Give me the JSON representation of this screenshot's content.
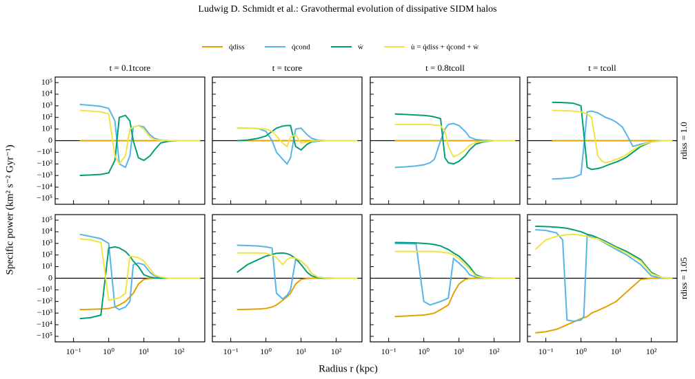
{
  "header": "Ludwig D. Schmidt et al.: Gravothermal evolution of dissipative SIDM halos",
  "legend": [
    {
      "name": "q̇diss",
      "color": "#e69f00"
    },
    {
      "name": "q̇cond",
      "color": "#56b4e9"
    },
    {
      "name": "ẇ",
      "color": "#009e73"
    },
    {
      "name": "u̇ = q̇diss + q̇cond + ẇ",
      "color": "#f0e442"
    }
  ],
  "ylabel": "Specific power (km² s⁻² Gyr⁻¹)",
  "xlabel": "Radius r (kpc)",
  "row_labels": [
    "rdiss = 1.0",
    "rdiss = 1.05"
  ],
  "xscale": "log",
  "yscale": "symlog",
  "linthresh": 10,
  "xlim": [
    0.03,
    540
  ],
  "ylim": [
    -300000,
    300000
  ],
  "xticks": [
    {
      "value": 0.1,
      "label": "10⁻¹"
    },
    {
      "value": 1,
      "label": "10⁰"
    },
    {
      "value": 10,
      "label": "10¹"
    },
    {
      "value": 100,
      "label": "10²"
    }
  ],
  "yticks": [
    {
      "value": 100000,
      "label": "10⁵"
    },
    {
      "value": 10000,
      "label": "10⁴"
    },
    {
      "value": 1000,
      "label": "10³"
    },
    {
      "value": 100,
      "label": "10²"
    },
    {
      "value": 10,
      "label": "10¹"
    },
    0,
    {
      "value": -10,
      "label": "−10¹"
    },
    {
      "value": -100,
      "label": "−10²"
    },
    {
      "value": -1000,
      "label": "−10³"
    },
    {
      "value": -10000,
      "label": "−10⁴"
    },
    {
      "value": -100000,
      "label": "−10⁵"
    }
  ],
  "chart_data": [
    {
      "type": "line",
      "title": "t = 0.1tcore",
      "x": [
        0.15,
        0.3,
        0.6,
        1,
        1.5,
        2,
        3,
        4,
        5,
        7,
        10,
        15,
        20,
        30,
        50,
        100,
        200,
        400
      ],
      "series": [
        {
          "values": [
            0,
            0,
            0,
            0,
            0,
            0,
            0,
            0,
            0,
            0,
            0,
            0,
            0,
            0,
            0,
            0,
            0,
            0
          ]
        },
        {
          "values": [
            1300,
            1100,
            900,
            600,
            50,
            -100,
            -200,
            -20,
            15,
            20,
            15,
            5,
            2,
            0.5,
            0.1,
            0,
            0,
            0
          ]
        },
        {
          "values": [
            -1000,
            -900,
            -800,
            -600,
            -50,
            100,
            150,
            50,
            0,
            -30,
            -50,
            -20,
            -8,
            -2,
            -0.5,
            0,
            0,
            0
          ]
        },
        {
          "values": [
            400,
            350,
            300,
            200,
            -20,
            -100,
            -20,
            10,
            15,
            20,
            10,
            3,
            1,
            0.3,
            0,
            0,
            0,
            0
          ]
        }
      ]
    },
    {
      "type": "line",
      "title": "t = tcore",
      "x": [
        0.15,
        0.3,
        0.6,
        1,
        1.5,
        2,
        3,
        4,
        5,
        7,
        10,
        15,
        20,
        30,
        50,
        100,
        200,
        400
      ],
      "series": [
        {
          "values": [
            0,
            0,
            0,
            0,
            0,
            0,
            0,
            0,
            0,
            0,
            0,
            0,
            0,
            0,
            0,
            0,
            0,
            0
          ]
        },
        {
          "values": [
            12,
            12,
            11,
            8,
            0,
            -10,
            -40,
            -100,
            -30,
            10,
            12,
            5,
            2,
            0.5,
            0,
            0,
            0,
            0
          ]
        },
        {
          "values": [
            0,
            0.5,
            2,
            4,
            8,
            12,
            18,
            20,
            20,
            -5,
            -8,
            -3,
            -1,
            -0.3,
            0,
            0,
            0,
            0
          ]
        },
        {
          "values": [
            12,
            12,
            11,
            10,
            8,
            4,
            -2,
            -5,
            3,
            5,
            -2,
            -1,
            -0.5,
            0,
            0,
            0,
            0,
            0
          ]
        }
      ]
    },
    {
      "type": "line",
      "title": "t = 0.8tcoll",
      "x": [
        0.15,
        0.3,
        0.6,
        1,
        1.5,
        2,
        3,
        4,
        5,
        7,
        10,
        15,
        20,
        30,
        50,
        100,
        200,
        400
      ],
      "series": [
        {
          "values": [
            0,
            0,
            0,
            0,
            0,
            0,
            0,
            0,
            0,
            0,
            0,
            0,
            0,
            0,
            0,
            0,
            0,
            0
          ]
        },
        {
          "values": [
            -200,
            -180,
            -150,
            -120,
            -80,
            -40,
            0,
            10,
            25,
            30,
            20,
            8,
            3,
            1,
            0.3,
            0,
            0,
            0
          ]
        },
        {
          "values": [
            200,
            180,
            160,
            150,
            130,
            110,
            80,
            -30,
            -80,
            -100,
            -60,
            -20,
            -8,
            -3,
            -1,
            0,
            0,
            0
          ]
        },
        {
          "values": [
            25,
            25,
            25,
            25,
            25,
            22,
            20,
            8,
            -5,
            -25,
            -15,
            -8,
            -4,
            -1.5,
            -0.5,
            0,
            0,
            0
          ]
        }
      ]
    },
    {
      "type": "line",
      "title": "t = tcoll",
      "x": [
        0.15,
        0.3,
        0.6,
        1,
        1.5,
        2,
        3,
        4,
        5,
        7,
        10,
        15,
        20,
        30,
        50,
        100,
        200,
        400
      ],
      "series": [
        {
          "values": [
            0,
            0,
            0,
            0,
            0,
            0,
            0,
            0,
            0,
            0,
            0,
            0,
            0,
            0,
            0,
            0,
            0,
            0
          ]
        },
        {
          "values": [
            -2000,
            -1800,
            -1500,
            -800,
            300,
            350,
            250,
            150,
            100,
            70,
            40,
            15,
            5,
            -5,
            -3,
            -1,
            0,
            0
          ]
        },
        {
          "values": [
            2000,
            1900,
            1700,
            1000,
            -200,
            -300,
            -250,
            -200,
            -150,
            -100,
            -70,
            -40,
            -25,
            -10,
            -5,
            -1,
            0,
            0
          ]
        },
        {
          "values": [
            400,
            380,
            350,
            300,
            200,
            100,
            -20,
            -60,
            -80,
            -60,
            -40,
            -25,
            -15,
            -8,
            -4,
            -1,
            0,
            0
          ]
        }
      ]
    },
    {
      "type": "line",
      "x": [
        0.15,
        0.3,
        0.6,
        1,
        1.5,
        2,
        3,
        4,
        5,
        7,
        10,
        15,
        20,
        30,
        50,
        100,
        200,
        400
      ],
      "series": [
        {
          "values": [
            -500,
            -480,
            -450,
            -400,
            -300,
            -200,
            -100,
            -40,
            -20,
            -5,
            -1,
            -0.2,
            0,
            0,
            0,
            0,
            0,
            0
          ]
        },
        {
          "values": [
            6000,
            4000,
            2500,
            1000,
            -300,
            -500,
            -300,
            -100,
            15,
            20,
            15,
            5,
            2,
            0.5,
            0,
            0,
            0,
            0
          ]
        },
        {
          "values": [
            -3000,
            -2500,
            -1500,
            400,
            500,
            400,
            200,
            80,
            30,
            10,
            3,
            1,
            0.3,
            0,
            0,
            0,
            0,
            0
          ]
        },
        {
          "values": [
            2500,
            2000,
            1200,
            -80,
            -60,
            -50,
            -20,
            80,
            70,
            60,
            30,
            8,
            3,
            1,
            0,
            0,
            0,
            0
          ]
        }
      ]
    },
    {
      "type": "line",
      "x": [
        0.15,
        0.3,
        0.6,
        1,
        1.5,
        2,
        3,
        4,
        5,
        7,
        10,
        15,
        20,
        30,
        50,
        100,
        200,
        400
      ],
      "series": [
        {
          "values": [
            -500,
            -480,
            -450,
            -400,
            -300,
            -200,
            -80,
            -40,
            -20,
            -5,
            -1,
            -0.2,
            0,
            0,
            0,
            0,
            0,
            0
          ]
        },
        {
          "values": [
            700,
            650,
            600,
            500,
            400,
            -20,
            -60,
            -30,
            -10,
            40,
            30,
            10,
            4,
            1,
            0.2,
            0,
            0,
            0
          ]
        },
        {
          "values": [
            5,
            15,
            40,
            80,
            110,
            140,
            150,
            130,
            100,
            50,
            15,
            5,
            2,
            0.5,
            0,
            0,
            0,
            0
          ]
        },
        {
          "values": [
            150,
            150,
            150,
            140,
            100,
            60,
            15,
            40,
            60,
            55,
            30,
            10,
            4,
            1,
            0.2,
            0,
            0,
            0
          ]
        }
      ]
    },
    {
      "type": "line",
      "x": [
        0.15,
        0.3,
        0.6,
        1,
        1.5,
        2,
        3,
        4,
        5,
        7,
        10,
        15,
        20,
        30,
        50,
        100,
        200,
        400
      ],
      "series": [
        {
          "values": [
            -2000,
            -1800,
            -1600,
            -1500,
            -1200,
            -1000,
            -500,
            -300,
            -200,
            -20,
            -5,
            -1,
            -0.2,
            0,
            0,
            0,
            0,
            0
          ]
        },
        {
          "values": [
            1000,
            950,
            900,
            -100,
            -200,
            -150,
            -100,
            -70,
            -50,
            50,
            20,
            8,
            3,
            1,
            0.2,
            0,
            0,
            0
          ]
        },
        {
          "values": [
            1200,
            1150,
            1100,
            1000,
            900,
            800,
            600,
            400,
            300,
            150,
            80,
            25,
            10,
            3,
            0.5,
            0,
            0,
            0
          ]
        },
        {
          "values": [
            200,
            200,
            200,
            200,
            200,
            200,
            180,
            160,
            150,
            100,
            50,
            15,
            8,
            2,
            0.3,
            0,
            0,
            0
          ]
        }
      ]
    },
    {
      "type": "line",
      "x": [
        0.05,
        0.1,
        0.2,
        0.3,
        0.4,
        0.6,
        1,
        1.2,
        1.5,
        2,
        3,
        5,
        10,
        20,
        50,
        100,
        200,
        400
      ],
      "series": [
        {
          "values": [
            -50000,
            -40000,
            -25000,
            -15000,
            -10000,
            -6000,
            -3000,
            -2500,
            -2000,
            -1000,
            -600,
            -300,
            -100,
            -15,
            -1,
            0,
            0,
            0
          ]
        },
        {
          "values": [
            15000,
            13000,
            8000,
            2000,
            -4000,
            -5000,
            -4000,
            -2000,
            5000,
            3500,
            2500,
            1000,
            300,
            100,
            15,
            2,
            0,
            0
          ]
        },
        {
          "values": [
            30000,
            28000,
            25000,
            22000,
            20000,
            15000,
            10000,
            8000,
            6000,
            5000,
            3000,
            1500,
            500,
            200,
            40,
            5,
            0.5,
            0
          ]
        },
        {
          "values": [
            300,
            2000,
            4000,
            5000,
            5500,
            6000,
            5000,
            4500,
            4000,
            3000,
            2500,
            1200,
            400,
            150,
            30,
            4,
            0.5,
            0
          ]
        }
      ]
    }
  ]
}
